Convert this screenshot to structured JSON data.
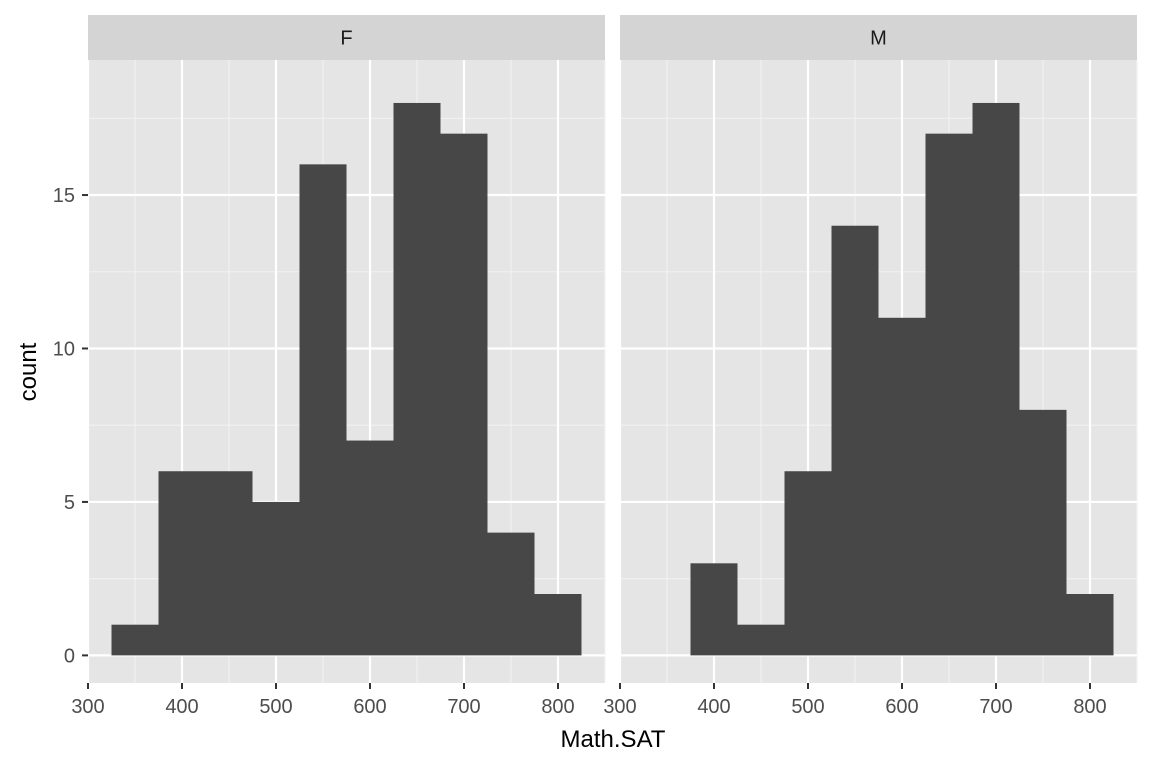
{
  "chart_data": {
    "type": "bar",
    "subtype": "faceted-histogram",
    "xlabel": "Math.SAT",
    "ylabel": "count",
    "xlim": [
      300,
      850
    ],
    "ylim": [
      -0.9,
      19.4
    ],
    "x_ticks": [
      300,
      400,
      500,
      600,
      700,
      800
    ],
    "x_tick_labels": [
      "300",
      "400",
      "500",
      "600",
      "700",
      "800"
    ],
    "y_ticks": [
      0,
      5,
      10,
      15
    ],
    "y_tick_labels": [
      "0",
      "5",
      "10",
      "15"
    ],
    "bin_width": 50,
    "grid": true,
    "bar_color": "#474747",
    "panel_background": "#e5e5e5",
    "strip_background": "#d4d4d4",
    "facets": [
      {
        "label": "F",
        "bins": [
          {
            "x0": 325,
            "x1": 375,
            "count": 1
          },
          {
            "x0": 375,
            "x1": 425,
            "count": 6
          },
          {
            "x0": 425,
            "x1": 475,
            "count": 6
          },
          {
            "x0": 475,
            "x1": 525,
            "count": 5
          },
          {
            "x0": 525,
            "x1": 575,
            "count": 16
          },
          {
            "x0": 575,
            "x1": 625,
            "count": 7
          },
          {
            "x0": 625,
            "x1": 675,
            "count": 18
          },
          {
            "x0": 675,
            "x1": 725,
            "count": 17
          },
          {
            "x0": 725,
            "x1": 775,
            "count": 4
          },
          {
            "x0": 775,
            "x1": 825,
            "count": 2
          }
        ]
      },
      {
        "label": "M",
        "bins": [
          {
            "x0": 375,
            "x1": 425,
            "count": 3
          },
          {
            "x0": 425,
            "x1": 475,
            "count": 1
          },
          {
            "x0": 475,
            "x1": 525,
            "count": 6
          },
          {
            "x0": 525,
            "x1": 575,
            "count": 14
          },
          {
            "x0": 575,
            "x1": 625,
            "count": 11
          },
          {
            "x0": 625,
            "x1": 675,
            "count": 17
          },
          {
            "x0": 675,
            "x1": 725,
            "count": 18
          },
          {
            "x0": 725,
            "x1": 775,
            "count": 8
          },
          {
            "x0": 775,
            "x1": 825,
            "count": 2
          }
        ]
      }
    ]
  }
}
